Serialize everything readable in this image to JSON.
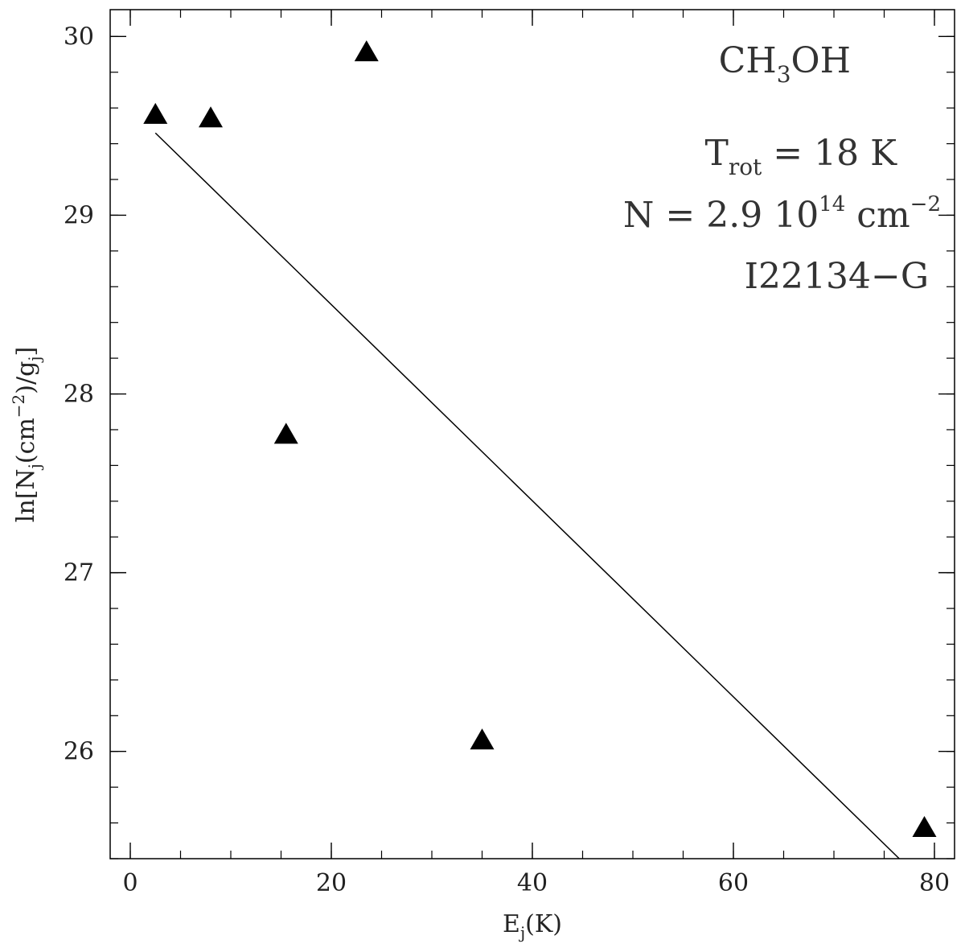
{
  "chart_data": {
    "type": "scatter",
    "xlim": [
      -2,
      82
    ],
    "ylim": [
      25.4,
      30.15
    ],
    "x_ticks": [
      0,
      20,
      40,
      60,
      80
    ],
    "y_ticks": [
      26,
      27,
      28,
      29,
      30
    ],
    "x_minor_step": 5,
    "y_minor_step": 0.2,
    "xlabel": {
      "base": "E",
      "sub": "j",
      "rest": "(K)"
    },
    "ylabel": {
      "p1": "ln[N",
      "sub1": "j",
      "p2": "(cm",
      "sup": "−2",
      "p3": ")/g",
      "sub2": "j",
      "p4": "]"
    },
    "series": [
      {
        "marker": "triangle",
        "color": "#000000",
        "x": [
          2.5,
          8.0,
          15.5,
          23.5,
          35.0,
          79.0
        ],
        "y": [
          29.57,
          29.55,
          27.78,
          29.92,
          26.07,
          25.58
        ]
      }
    ],
    "fit_line": {
      "x": [
        2.5,
        76.5
      ],
      "y": [
        29.46,
        25.4
      ]
    },
    "annotations": {
      "molecule": {
        "p1": "CH",
        "sub": "3",
        "p2": "OH"
      },
      "trot": {
        "p1": "T",
        "sub": "rot",
        "p2": " = 18 K"
      },
      "column": {
        "p1": "N = 2.9 10",
        "sup": "14",
        "p2": " cm",
        "sup2": "−2"
      },
      "source": "I22134−G"
    }
  }
}
